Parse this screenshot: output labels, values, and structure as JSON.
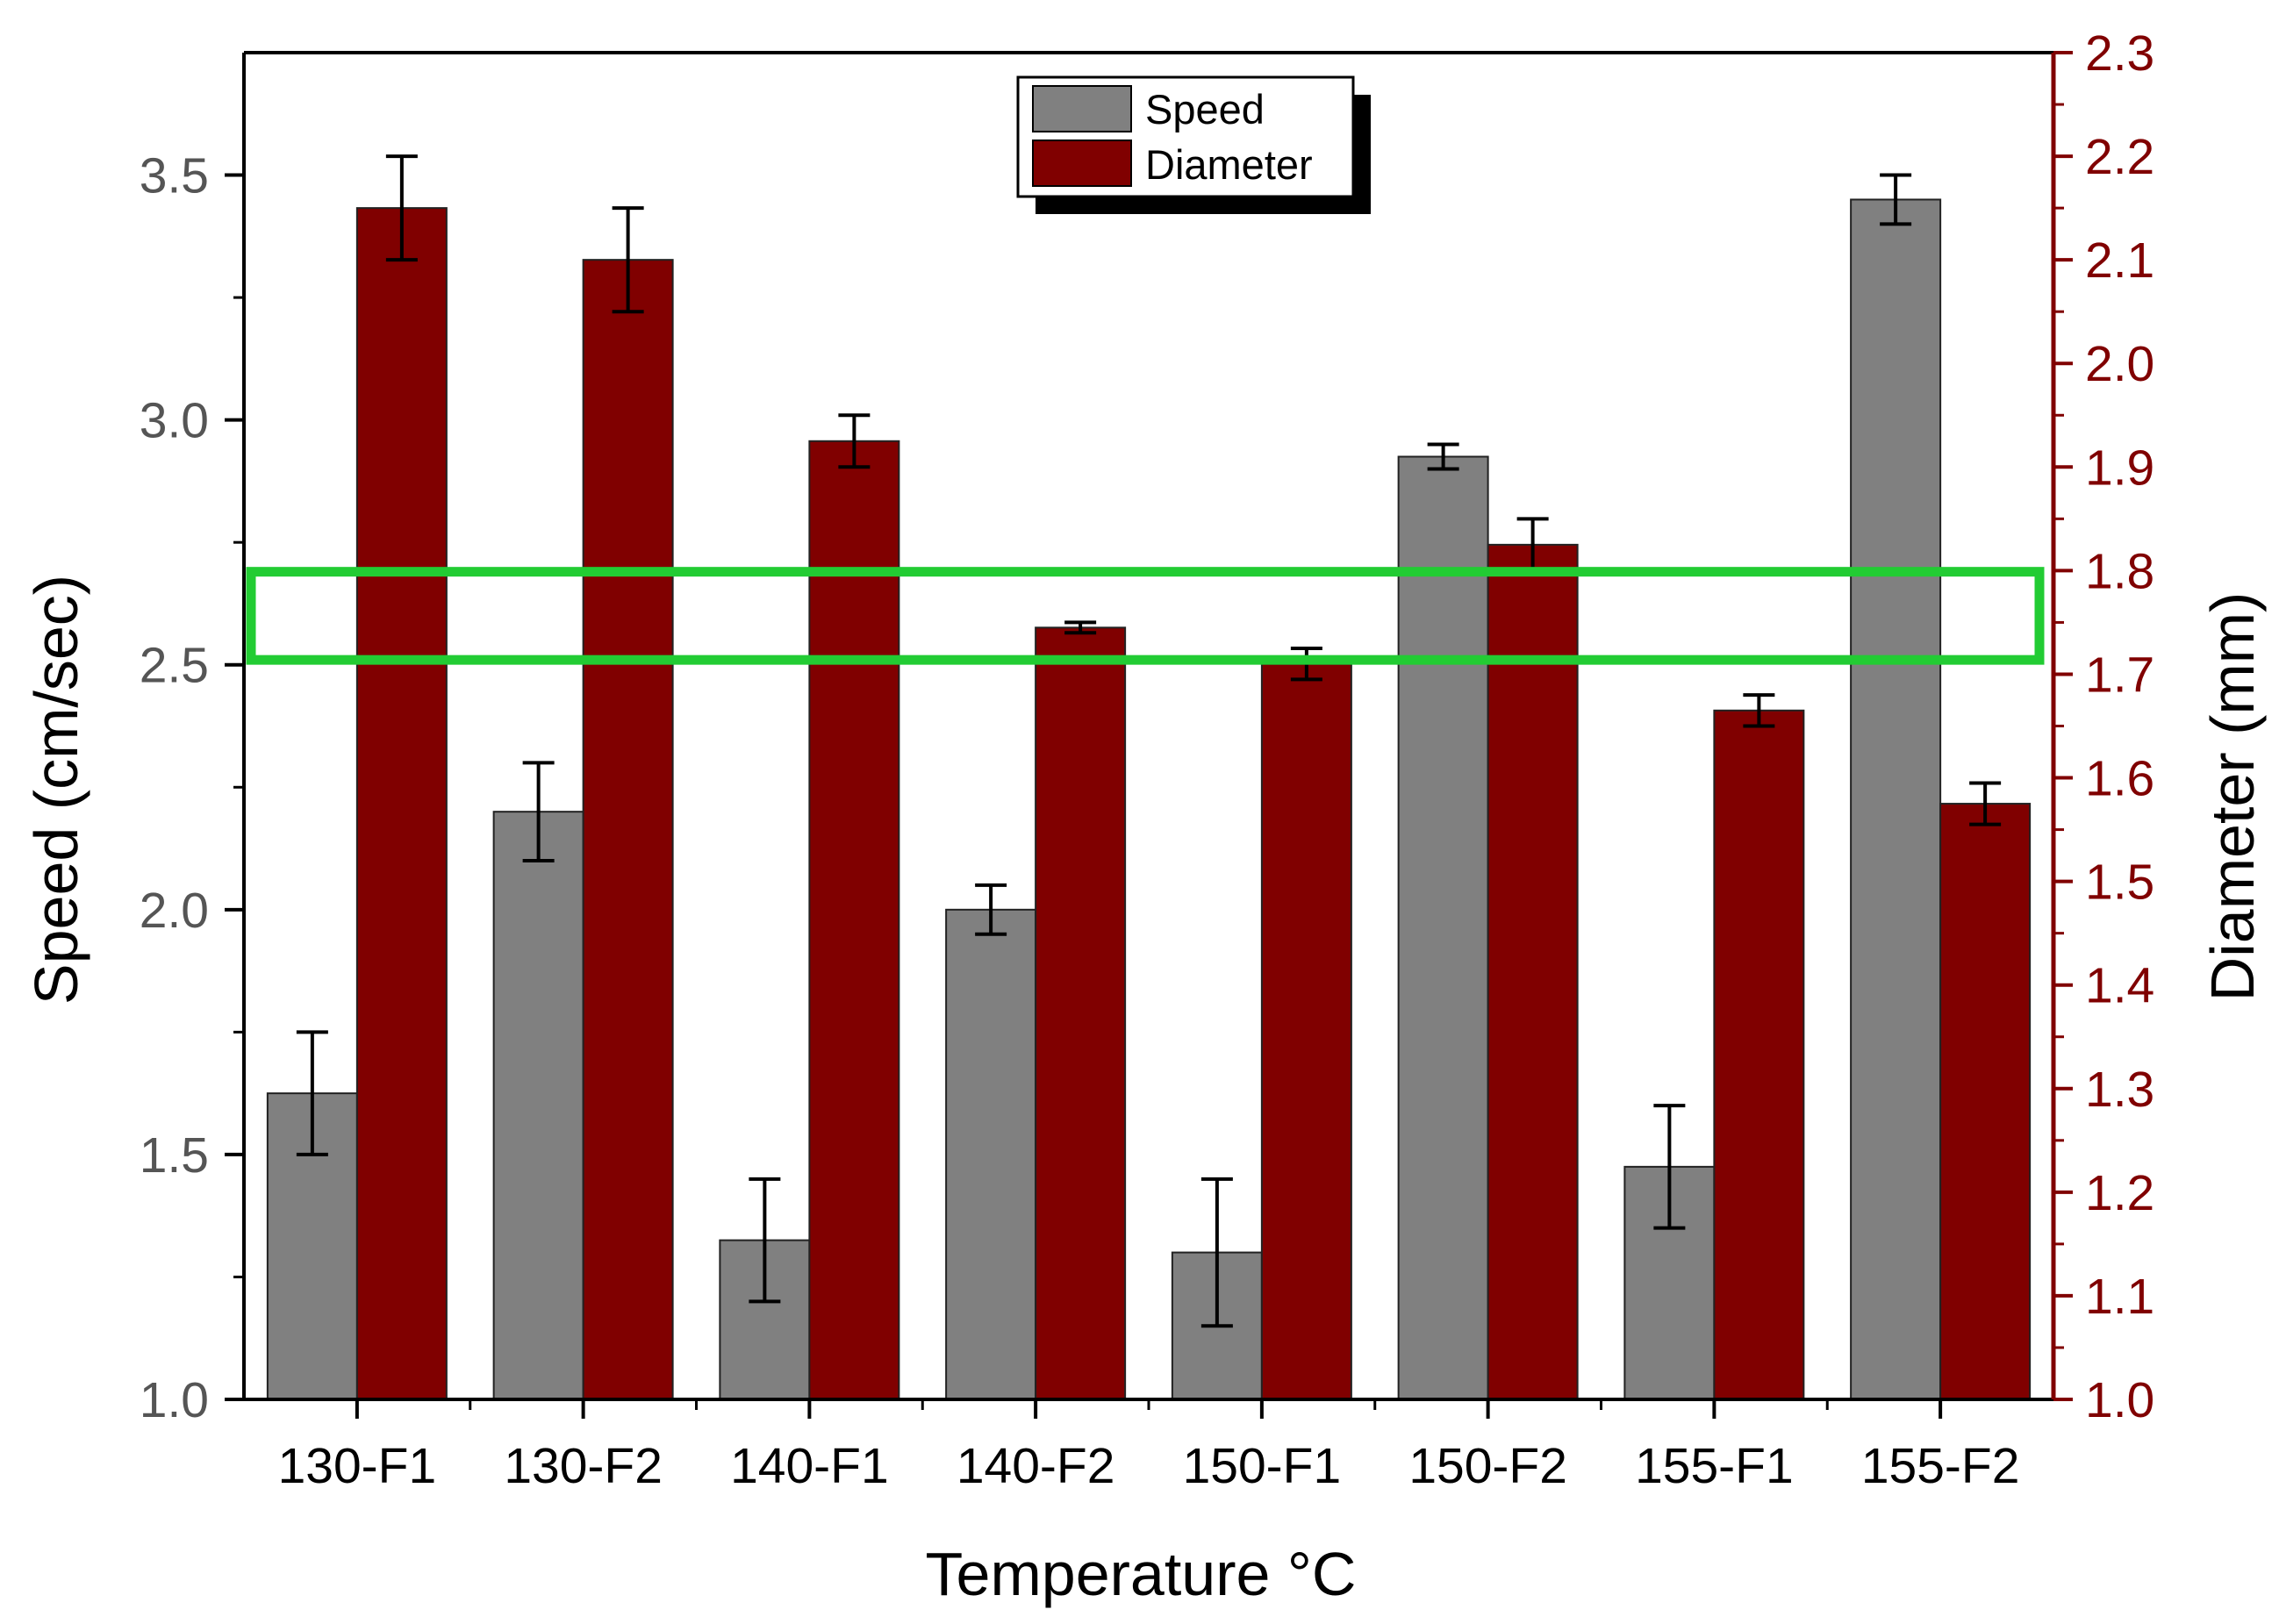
{
  "chart_data": {
    "type": "bar",
    "categories": [
      "130-F1",
      "130-F2",
      "140-F1",
      "140-F2",
      "150-F1",
      "150-F2",
      "155-F1",
      "155-F2"
    ],
    "series": [
      {
        "name": "Speed",
        "axis": "left",
        "color": "#808080",
        "values": [
          1.625,
          2.2,
          1.325,
          2.0,
          1.3,
          2.925,
          1.475,
          3.45
        ],
        "errors": [
          0.125,
          0.1,
          0.125,
          0.05,
          0.15,
          0.025,
          0.125,
          0.05
        ]
      },
      {
        "name": "Diameter",
        "axis": "right",
        "color": "#800000",
        "values": [
          2.15,
          2.1,
          1.925,
          1.745,
          1.71,
          1.825,
          1.665,
          1.575
        ],
        "errors": [
          0.05,
          0.05,
          0.025,
          0.005,
          0.015,
          0.025,
          0.015,
          0.02
        ]
      }
    ],
    "xlabel": "Temperature °C",
    "ylabel": "Speed (cm/sec)",
    "y2label": "Diameter (mm)",
    "ylim": [
      1.0,
      3.75
    ],
    "y2lim": [
      1.0,
      2.3
    ],
    "yticks": [
      "1.0",
      "1.5",
      "2.0",
      "2.5",
      "3.0",
      "3.5"
    ],
    "y2ticks": [
      "1.0",
      "1.1",
      "1.2",
      "1.3",
      "1.4",
      "1.5",
      "1.6",
      "1.7",
      "1.8",
      "1.9",
      "2.0",
      "2.1",
      "2.2",
      "2.3"
    ],
    "left_axis_color": "#555555",
    "right_axis_color": "#800000",
    "legend": {
      "placement": "top-center",
      "entries": [
        "Speed",
        "Diameter"
      ]
    },
    "grid": false,
    "annotations": [
      {
        "type": "highlight-band",
        "color": "#22cc33",
        "y_range": [
          2.51,
          2.69
        ],
        "axis": "left"
      }
    ]
  }
}
